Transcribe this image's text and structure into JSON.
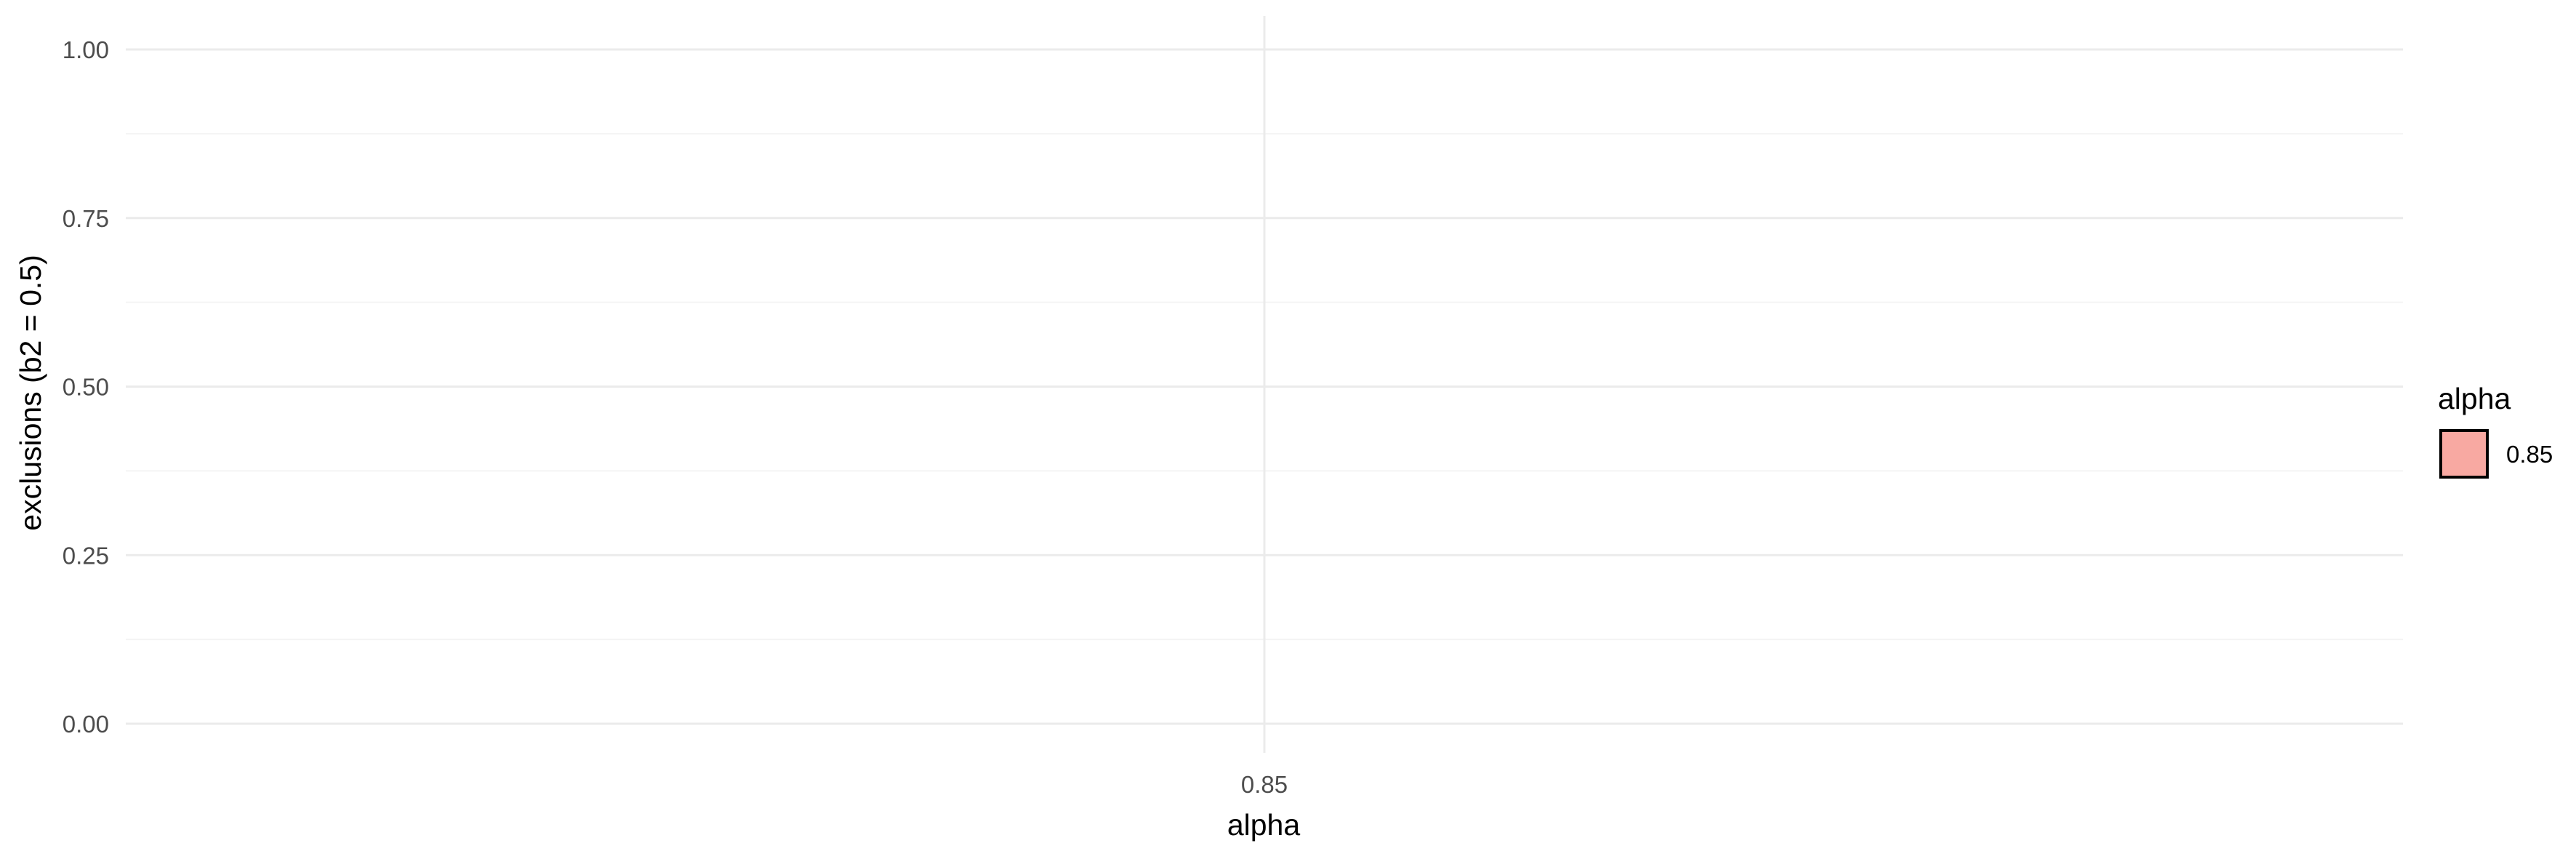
{
  "chart_data": {
    "type": "bar",
    "categories": [
      "0.85"
    ],
    "values": [
      0
    ],
    "xlabel": "alpha",
    "ylabel": "exclusions (b2 = 0.5)",
    "ylim": [
      0,
      1
    ],
    "yticks": [
      0,
      0.25,
      0.5,
      0.75,
      1
    ],
    "ytick_labels": [
      "0.00",
      "0.25",
      "0.50",
      "0.75",
      "1.00"
    ],
    "grid": true,
    "legend": {
      "title": "alpha",
      "position": "right",
      "entries": [
        {
          "label": "0.85",
          "color": "#F8A9A2"
        }
      ]
    },
    "colors": {
      "bar_fill": "#F8A9A2",
      "bar_outline": "#000000",
      "grid_major": "#EBEBEB",
      "grid_minor": "#F4F4F4"
    }
  }
}
